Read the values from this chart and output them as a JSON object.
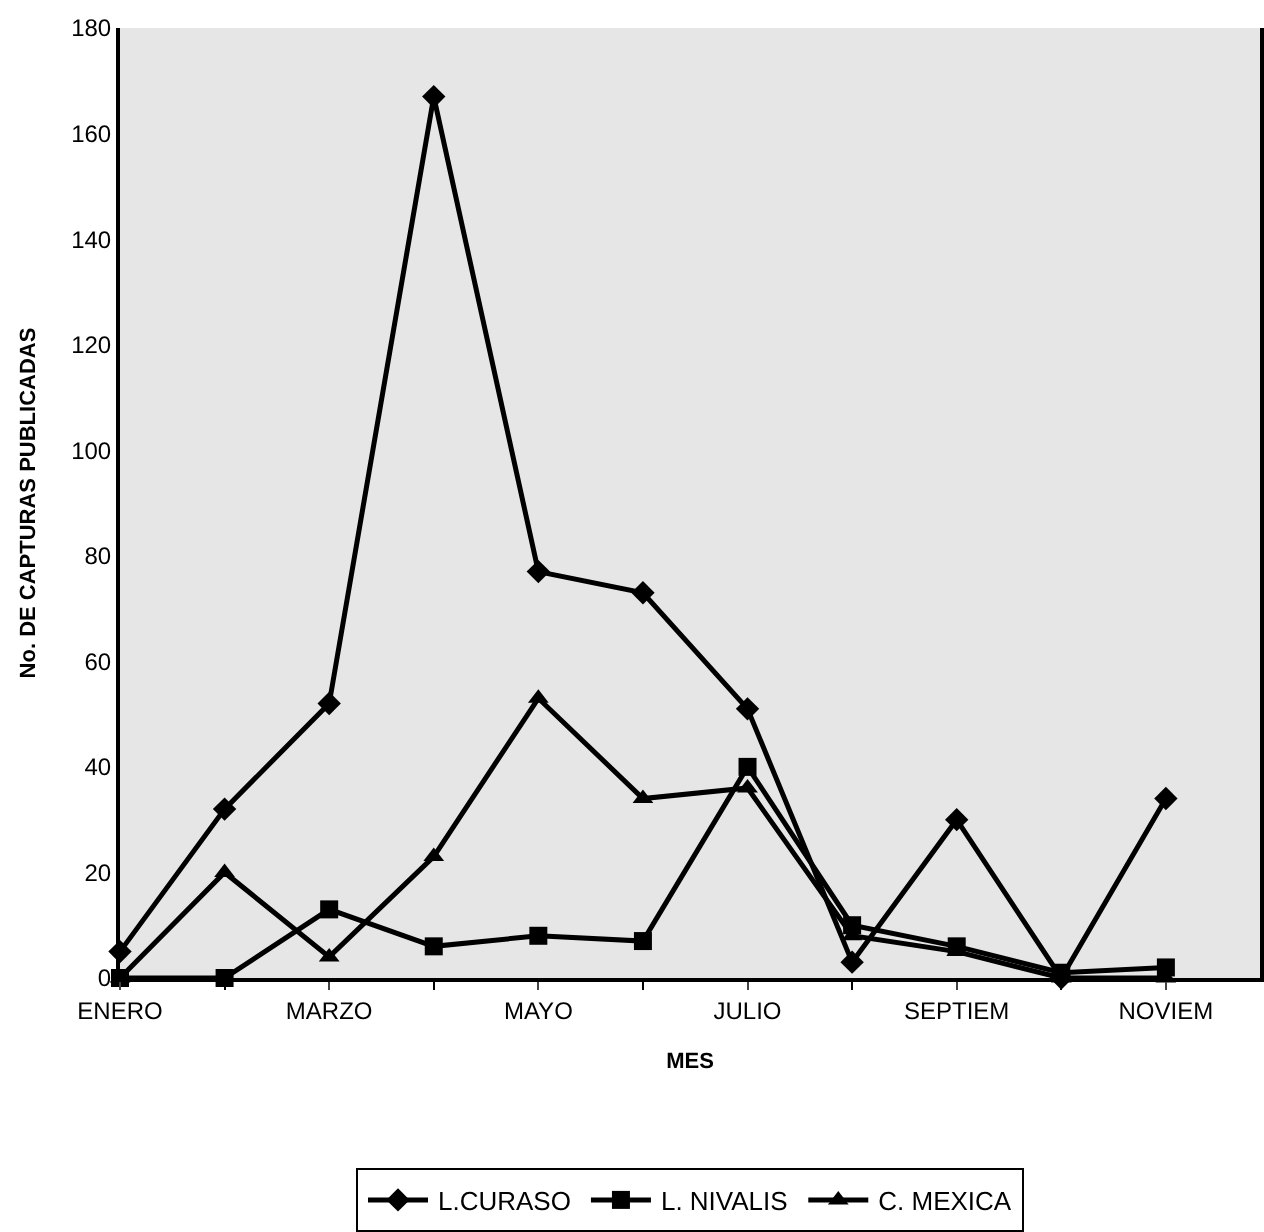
{
  "chart_data": {
    "type": "line",
    "xlabel": "MES",
    "ylabel": "No. DE CAPTURAS PUBLICADAS",
    "categories": [
      "ENERO",
      null,
      "MARZO",
      null,
      "MAYO",
      null,
      "JULIO",
      null,
      "SEPTIEM",
      null,
      "NOVIEM"
    ],
    "series": [
      {
        "name": "L.CURASO",
        "color": "#000000",
        "marker": "diamond",
        "values": [
          5,
          32,
          52,
          167,
          77,
          73,
          51,
          3,
          30,
          0,
          34
        ]
      },
      {
        "name": "L. NIVALIS",
        "color": "#000000",
        "marker": "square",
        "values": [
          0,
          0,
          13,
          6,
          8,
          7,
          40,
          10,
          6,
          1,
          2
        ]
      },
      {
        "name": "C. MEXICA",
        "color": "#000000",
        "marker": "triangle",
        "values": [
          0,
          20,
          4,
          23,
          53,
          34,
          36,
          8,
          5,
          0,
          0
        ]
      }
    ],
    "ylim": [
      0,
      180
    ],
    "yticks": [
      0,
      20,
      40,
      60,
      80,
      100,
      120,
      140,
      160,
      180
    ],
    "grid": false,
    "legend": "bottom",
    "line_style": "solid"
  }
}
